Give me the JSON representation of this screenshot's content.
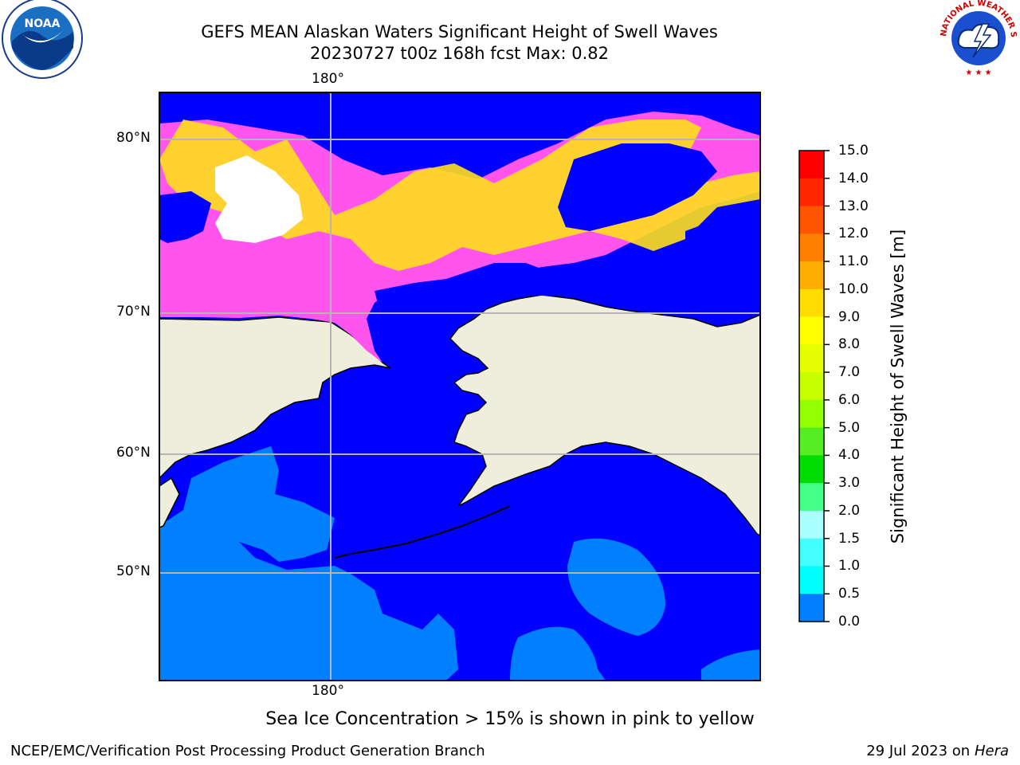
{
  "title": {
    "line1": "GEFS MEAN Alaskan Waters Significant Height of Swell Waves",
    "line2": "20230727 t00z 168h fcst   Max: 0.82"
  },
  "map": {
    "top_lon_label": "180°",
    "bottom_lon_label": "180°",
    "lat_labels": [
      "80°N",
      "70°N",
      "60°N",
      "50°N"
    ],
    "colors": {
      "ocean_low": "#0000ff",
      "ocean_mid": "#0080ff",
      "land": "#efeedc",
      "ice_pink": "#ff55ee",
      "ice_yellow": "#ffe01a",
      "gridline": "#b4b4b4"
    }
  },
  "colorbar": {
    "label": "Significant Height of Swell Waves [m]",
    "ticks": [
      "15.0",
      "14.0",
      "13.0",
      "12.0",
      "11.0",
      "10.0",
      "9.0",
      "8.0",
      "7.0",
      "6.0",
      "5.0",
      "4.0",
      "3.0",
      "2.0",
      "1.5",
      "1.0",
      "0.5",
      "0.0"
    ],
    "colors": [
      "#ff0000",
      "#ff2600",
      "#ff5500",
      "#ff8000",
      "#ffae00",
      "#ffdd00",
      "#ffff00",
      "#e6ff00",
      "#c8ff00",
      "#94ff00",
      "#55ee22",
      "#00dd00",
      "#44ff88",
      "#aaffff",
      "#44ffff",
      "#00ffff",
      "#0080ff",
      "#0000ff"
    ]
  },
  "note": "Sea Ice Concentration > 15% is shown in pink to yellow",
  "footer": {
    "left": "NCEP/EMC/Verification Post Processing Product Generation Branch",
    "date": "29 Jul 2023 on ",
    "host": "Hera"
  },
  "logos": {
    "noaa_text": "NOAA",
    "nws_text": "NATIONAL WEATHER SERVICE"
  }
}
